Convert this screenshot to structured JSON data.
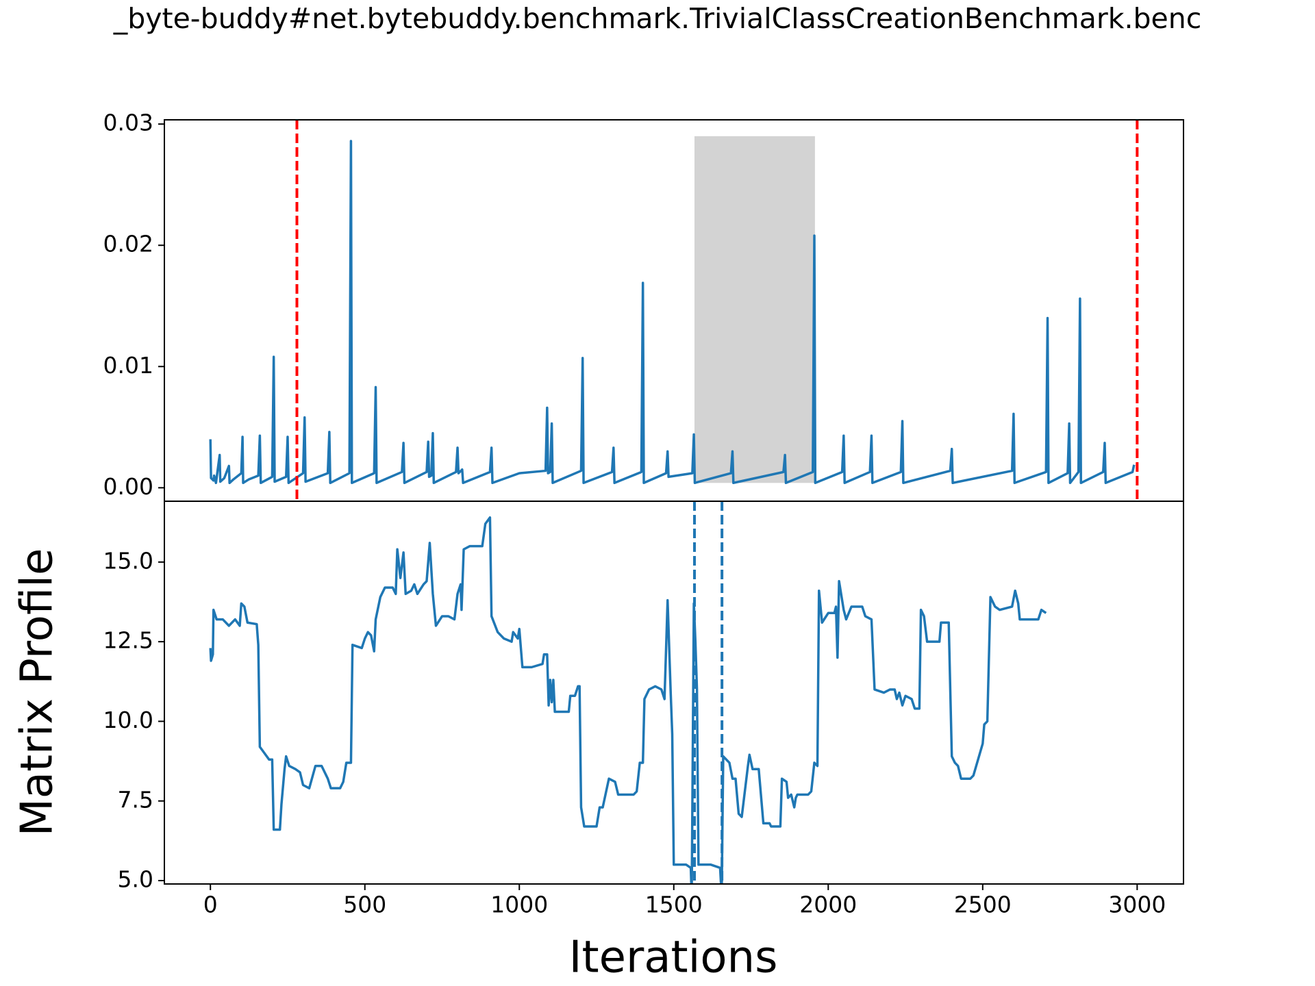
{
  "chart_data": [
    {
      "type": "line",
      "title": "_byte-buddy#net.bytebuddy.benchmark.TrivialClassCreationBenchmark.benc",
      "color": "#1f77b4",
      "x": [
        0,
        2,
        10,
        12,
        18,
        30,
        32,
        45,
        60,
        62,
        75,
        100,
        104,
        106,
        125,
        155,
        160,
        163,
        200,
        205,
        208,
        245,
        250,
        253,
        300,
        305,
        308,
        380,
        385,
        388,
        450,
        455,
        458,
        530,
        535,
        538,
        620,
        625,
        628,
        700,
        705,
        708,
        715,
        720,
        723,
        795,
        800,
        803,
        815,
        818,
        905,
        910,
        913,
        1000,
        1085,
        1090,
        1093,
        1100,
        1105,
        1108,
        1200,
        1205,
        1208,
        1300,
        1305,
        1308,
        1395,
        1400,
        1403,
        1475,
        1480,
        1483,
        1560,
        1565,
        1568,
        1685,
        1690,
        1693,
        1855,
        1860,
        1863,
        1950,
        1955,
        1958,
        2045,
        2050,
        2053,
        2135,
        2140,
        2143,
        2235,
        2240,
        2243,
        2395,
        2400,
        2403,
        2595,
        2600,
        2603,
        2705,
        2710,
        2713,
        2775,
        2780,
        2783,
        2810,
        2815,
        2818,
        2890,
        2895,
        2898,
        2985,
        2990
      ],
      "values": [
        0.004,
        0.0008,
        0.0006,
        0.001,
        0.0004,
        0.0027,
        0.0005,
        0.0008,
        0.0018,
        0.0004,
        0.0007,
        0.0012,
        0.0042,
        0.0004,
        0.0007,
        0.001,
        0.0043,
        0.0004,
        0.0009,
        0.0108,
        0.0005,
        0.0009,
        0.0042,
        0.0004,
        0.0012,
        0.0058,
        0.0005,
        0.0012,
        0.0046,
        0.0004,
        0.0012,
        0.0286,
        0.0004,
        0.0012,
        0.0083,
        0.0004,
        0.0013,
        0.0037,
        0.0004,
        0.0013,
        0.0038,
        0.0009,
        0.001,
        0.0045,
        0.0004,
        0.0013,
        0.0033,
        0.0012,
        0.0015,
        0.0004,
        0.0013,
        0.0033,
        0.0004,
        0.0012,
        0.0014,
        0.0066,
        0.0012,
        0.0013,
        0.0053,
        0.0004,
        0.0014,
        0.0107,
        0.0004,
        0.0013,
        0.0033,
        0.0004,
        0.0013,
        0.0169,
        0.0004,
        0.0012,
        0.003,
        0.0009,
        0.0012,
        0.0044,
        0.0004,
        0.0012,
        0.003,
        0.0004,
        0.0013,
        0.0027,
        0.0004,
        0.0013,
        0.0208,
        0.0004,
        0.0013,
        0.0043,
        0.0004,
        0.0013,
        0.0043,
        0.0004,
        0.0013,
        0.0055,
        0.0004,
        0.0014,
        0.0032,
        0.0004,
        0.0014,
        0.0061,
        0.0004,
        0.0013,
        0.014,
        0.0004,
        0.0012,
        0.0053,
        0.0004,
        0.0013,
        0.0156,
        0.0004,
        0.0013,
        0.0037,
        0.0004,
        0.0013,
        0.0019
      ],
      "xlim": [
        -149,
        3150
      ],
      "ylim": [
        -0.00111,
        0.03035
      ],
      "yticks": [
        {
          "value": 0,
          "label": "0.00"
        },
        0.01,
        0.02,
        0.03
      ],
      "span": {
        "x": [
          1567,
          1957
        ],
        "y": [
          0.0004,
          0.029
        ],
        "color": "#d3d3d3"
      },
      "vlines": [
        {
          "x": 280,
          "color": "#ff0000"
        },
        {
          "x": 3000,
          "color": "#ff0000"
        }
      ]
    },
    {
      "type": "line",
      "xlabel": "Iterations",
      "ylabel": "Matrix Profile",
      "color": "#1f77b4",
      "x": [
        0,
        2,
        8,
        10,
        20,
        40,
        60,
        80,
        95,
        100,
        110,
        120,
        150,
        155,
        160,
        175,
        190,
        200,
        205,
        225,
        230,
        240,
        245,
        255,
        275,
        290,
        300,
        320,
        340,
        360,
        380,
        390,
        420,
        430,
        440,
        455,
        460,
        490,
        500,
        510,
        520,
        530,
        535,
        550,
        565,
        590,
        600,
        605,
        615,
        625,
        632,
        650,
        660,
        670,
        690,
        700,
        710,
        720,
        730,
        750,
        770,
        790,
        800,
        810,
        813,
        820,
        840,
        880,
        890,
        905,
        910,
        930,
        950,
        975,
        980,
        995,
        1000,
        1010,
        1040,
        1075,
        1080,
        1090,
        1095,
        1100,
        1105,
        1110,
        1115,
        1140,
        1160,
        1165,
        1180,
        1190,
        1195,
        1200,
        1210,
        1250,
        1260,
        1270,
        1290,
        1310,
        1320,
        1370,
        1380,
        1390,
        1400,
        1405,
        1420,
        1440,
        1460,
        1470,
        1480,
        1490,
        1495,
        1500,
        1540,
        1555,
        1558,
        1565,
        1570,
        1575,
        1580,
        1620,
        1650,
        1655,
        1660,
        1680,
        1690,
        1700,
        1710,
        1720,
        1740,
        1745,
        1755,
        1775,
        1790,
        1810,
        1815,
        1845,
        1850,
        1865,
        1870,
        1880,
        1890,
        1895,
        1900,
        1935,
        1945,
        1955,
        1965,
        1970,
        1980,
        2000,
        2020,
        2025,
        2030,
        2035,
        2045,
        2050,
        2058,
        2075,
        2110,
        2120,
        2140,
        2150,
        2180,
        2200,
        2215,
        2222,
        2230,
        2240,
        2250,
        2270,
        2280,
        2295,
        2300,
        2310,
        2320,
        2360,
        2365,
        2390,
        2400,
        2410,
        2420,
        2430,
        2460,
        2470,
        2500,
        2505,
        2515,
        2525,
        2540,
        2555,
        2595,
        2605,
        2615,
        2620,
        2680,
        2690,
        2705
      ],
      "values": [
        12.3,
        11.9,
        12.1,
        13.5,
        13.2,
        13.2,
        13.0,
        13.2,
        13.0,
        13.7,
        13.6,
        13.1,
        13.05,
        12.4,
        9.2,
        9.0,
        8.8,
        8.8,
        6.6,
        6.6,
        7.4,
        8.5,
        8.9,
        8.6,
        8.5,
        8.4,
        8.0,
        7.9,
        8.6,
        8.6,
        8.2,
        7.9,
        7.9,
        8.1,
        8.7,
        8.7,
        12.4,
        12.3,
        12.6,
        12.8,
        12.7,
        12.2,
        13.2,
        13.9,
        14.2,
        14.2,
        14.0,
        15.4,
        14.5,
        15.3,
        14.0,
        14.1,
        14.3,
        14.0,
        14.3,
        14.4,
        15.6,
        14.0,
        13.0,
        13.3,
        13.3,
        13.2,
        14.0,
        14.3,
        13.5,
        15.4,
        15.5,
        15.5,
        16.2,
        16.4,
        13.3,
        12.8,
        12.6,
        12.5,
        12.8,
        12.6,
        12.9,
        11.7,
        11.7,
        11.8,
        12.1,
        12.1,
        10.5,
        11.3,
        10.6,
        11.3,
        10.3,
        10.3,
        10.3,
        10.8,
        10.8,
        11.1,
        11.1,
        7.3,
        6.7,
        6.7,
        7.3,
        7.3,
        8.2,
        8.1,
        7.7,
        7.7,
        7.8,
        8.7,
        8.7,
        10.7,
        11.0,
        11.1,
        11.0,
        10.7,
        13.8,
        10.9,
        9.6,
        5.5,
        5.5,
        5.4,
        4.5,
        13.7,
        12.5,
        11.0,
        5.5,
        5.5,
        5.4,
        4.5,
        8.9,
        8.7,
        8.2,
        8.2,
        7.1,
        7.0,
        8.6,
        8.95,
        8.5,
        8.5,
        6.8,
        6.8,
        6.7,
        6.7,
        8.2,
        8.1,
        7.6,
        7.7,
        7.3,
        7.6,
        7.7,
        7.7,
        7.8,
        8.7,
        8.6,
        14.1,
        13.1,
        13.4,
        13.4,
        13.6,
        12.0,
        14.4,
        13.8,
        13.5,
        13.2,
        13.6,
        13.6,
        13.3,
        13.2,
        11.0,
        10.9,
        11.0,
        11.0,
        10.7,
        10.9,
        10.5,
        10.8,
        10.7,
        10.4,
        10.4,
        13.5,
        13.3,
        12.5,
        12.5,
        13.1,
        13.1,
        8.9,
        8.7,
        8.6,
        8.2,
        8.2,
        8.3,
        9.3,
        9.9,
        10.0,
        13.9,
        13.6,
        13.5,
        13.6,
        14.1,
        13.7,
        13.2,
        13.2,
        13.5,
        13.4
      ],
      "xlim": [
        -149,
        3150
      ],
      "ylim": [
        4.894,
        16.91
      ],
      "xticks": [
        0,
        500,
        1000,
        1500,
        2000,
        2500,
        3000
      ],
      "yticks": [
        {
          "value": 5,
          "label": "5.0"
        },
        7.5,
        {
          "value": 10,
          "label": "10.0"
        },
        12.5,
        {
          "value": 15,
          "label": "15.0"
        }
      ],
      "vlines": [
        {
          "x": 1567,
          "color": "#1f77b4"
        },
        {
          "x": 1656,
          "color": "#1f77b4"
        }
      ]
    }
  ]
}
